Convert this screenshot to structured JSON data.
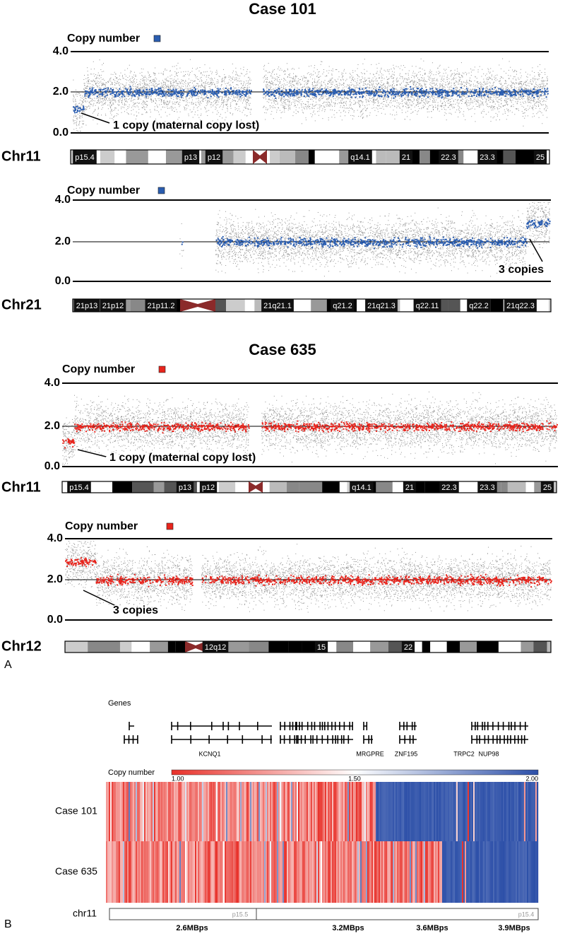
{
  "panel_a": {
    "label": "A",
    "cases": [
      {
        "title": "Case 101"
      },
      {
        "title": "Case 635"
      }
    ],
    "plots": [
      {
        "legend": "Copy number",
        "yticks": [
          "4.0",
          "2.0",
          "0.0"
        ],
        "annotation": "1 copy (maternal copy lost)",
        "chromosome": "Chr11",
        "bands": [
          "p15.4",
          "p13",
          "p12",
          "q14.1",
          "21",
          "22.3",
          "23.3",
          "25"
        ]
      },
      {
        "legend": "Copy number",
        "yticks": [
          "4.0",
          "2.0",
          "0.0"
        ],
        "annotation": "3 copies",
        "chromosome": "Chr21",
        "bands": [
          "21p13",
          "21p12",
          "21p11.2",
          "21q21.1",
          "q21.2",
          "21q21.3",
          "q22.11",
          "q22.2",
          "21q22.3"
        ]
      },
      {
        "legend": "Copy number",
        "yticks": [
          "4.0",
          "2.0",
          "0.0"
        ],
        "annotation": "1 copy (maternal copy lost)",
        "chromosome": "Chr11",
        "bands": [
          "p15.4",
          "p13",
          "p12",
          "q14.1",
          "21",
          "22.3",
          "23.3",
          "25"
        ]
      },
      {
        "legend": "Copy number",
        "yticks": [
          "4.0",
          "2.0",
          "0.0"
        ],
        "annotation": "3 copies",
        "chromosome": "Chr12",
        "bands": [
          "12q12",
          "15",
          "22"
        ]
      }
    ]
  },
  "panel_b": {
    "label": "B",
    "genes_title": "Genes",
    "genes": [
      "KCNQ1",
      "MRGPRE",
      "ZNF195",
      "TRPC2",
      "NUP98"
    ],
    "scale_title": "Copy number",
    "scale_labels": [
      "1.00",
      "1.50",
      "2.00"
    ],
    "rows": [
      "Case 101",
      "Case 635"
    ],
    "track": {
      "name": "chr11",
      "bands": [
        "p15.5",
        "p15.4"
      ]
    },
    "positions": [
      "2.6MBps",
      "3.2MBps",
      "3.6MBps",
      "3.9MBps"
    ]
  }
}
